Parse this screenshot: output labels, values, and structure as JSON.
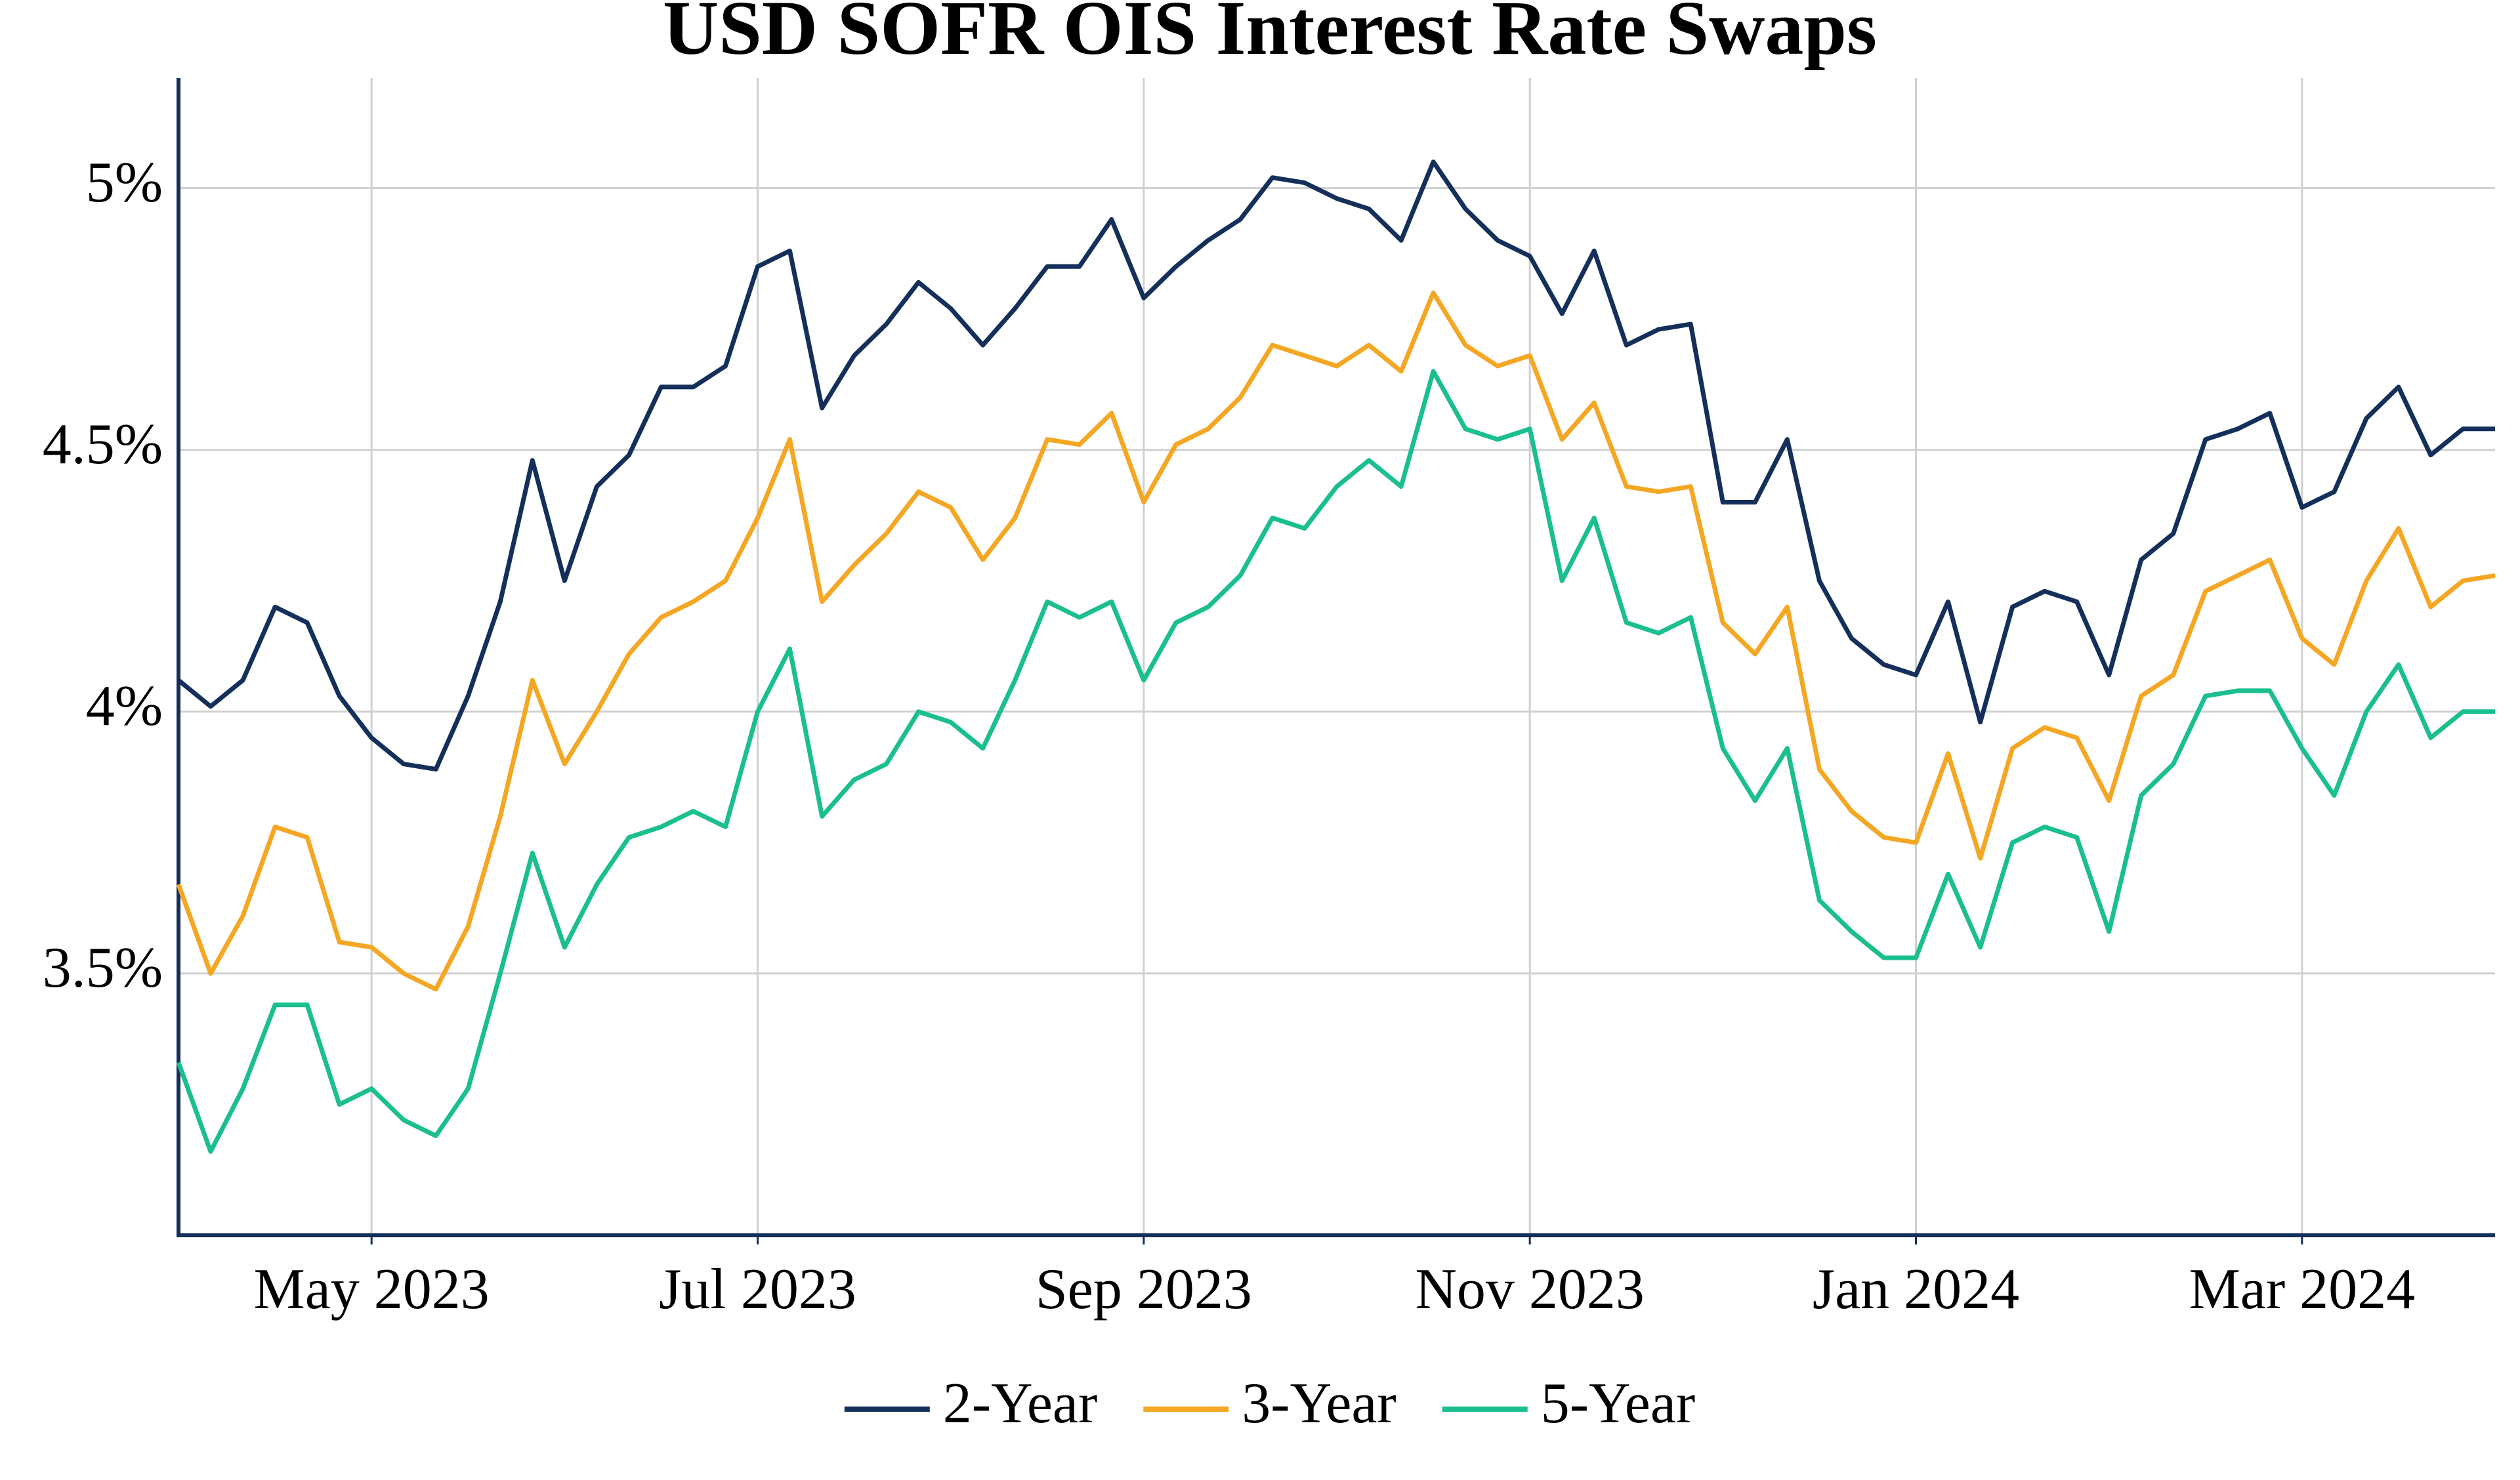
{
  "chart_data": {
    "type": "line",
    "title": "USD SOFR OIS Interest Rate Swaps",
    "categories": [
      null,
      null,
      null,
      null,
      null,
      null,
      "May 2023",
      null,
      null,
      null,
      null,
      null,
      null,
      null,
      null,
      null,
      null,
      null,
      "Jul 2023",
      null,
      null,
      null,
      null,
      null,
      null,
      null,
      null,
      null,
      null,
      null,
      "Sep 2023",
      null,
      null,
      null,
      null,
      null,
      null,
      null,
      null,
      null,
      null,
      null,
      "Nov 2023",
      null,
      null,
      null,
      null,
      null,
      null,
      null,
      null,
      null,
      null,
      null,
      "Jan 2024",
      null,
      null,
      null,
      null,
      null,
      null,
      null,
      null,
      null,
      null,
      null,
      "Mar 2024",
      null,
      null,
      null,
      null,
      null,
      null
    ],
    "series": [
      {
        "name": "2-Year",
        "color": "#14305a",
        "values": [
          4.06,
          4.01,
          4.06,
          4.2,
          4.17,
          4.03,
          3.95,
          3.9,
          3.89,
          4.03,
          4.21,
          4.48,
          4.25,
          4.43,
          4.49,
          4.62,
          4.62,
          4.66,
          4.85,
          4.88,
          4.58,
          4.68,
          4.74,
          4.82,
          4.77,
          4.7,
          4.77,
          4.85,
          4.85,
          4.94,
          4.79,
          4.85,
          4.9,
          4.94,
          5.02,
          5.01,
          4.98,
          4.96,
          4.9,
          5.05,
          4.96,
          4.9,
          4.87,
          4.76,
          4.88,
          4.7,
          4.73,
          4.74,
          4.4,
          4.4,
          4.52,
          4.25,
          4.14,
          4.09,
          4.07,
          4.21,
          3.98,
          4.2,
          4.23,
          4.21,
          4.07,
          4.29,
          4.34,
          4.52,
          4.54,
          4.57,
          4.39,
          4.42,
          4.56,
          4.62,
          4.49,
          4.54,
          4.54
        ]
      },
      {
        "name": "3-Year",
        "color": "#f5a623",
        "values": [
          3.67,
          3.5,
          3.61,
          3.78,
          3.76,
          3.56,
          3.55,
          3.5,
          3.47,
          3.59,
          3.8,
          4.06,
          3.9,
          4.0,
          4.11,
          4.18,
          4.21,
          4.25,
          4.37,
          4.52,
          4.21,
          4.28,
          4.34,
          4.42,
          4.39,
          4.29,
          4.37,
          4.52,
          4.51,
          4.57,
          4.4,
          4.51,
          4.54,
          4.6,
          4.7,
          4.68,
          4.66,
          4.7,
          4.65,
          4.8,
          4.7,
          4.66,
          4.68,
          4.52,
          4.59,
          4.43,
          4.42,
          4.43,
          4.17,
          4.11,
          4.2,
          3.89,
          3.81,
          3.76,
          3.75,
          3.92,
          3.72,
          3.93,
          3.97,
          3.95,
          3.83,
          4.03,
          4.07,
          4.23,
          4.26,
          4.29,
          4.14,
          4.09,
          4.25,
          4.35,
          4.2,
          4.25,
          4.26
        ]
      },
      {
        "name": "5-Year",
        "color": "#1bbf8f",
        "values": [
          3.33,
          3.16,
          3.28,
          3.44,
          3.44,
          3.25,
          3.28,
          3.22,
          3.19,
          3.28,
          3.5,
          3.73,
          3.55,
          3.67,
          3.76,
          3.78,
          3.81,
          3.78,
          4.0,
          4.12,
          3.8,
          3.87,
          3.9,
          4.0,
          3.98,
          3.93,
          4.06,
          4.21,
          4.18,
          4.21,
          4.06,
          4.17,
          4.2,
          4.26,
          4.37,
          4.35,
          4.43,
          4.48,
          4.43,
          4.65,
          4.54,
          4.52,
          4.54,
          4.25,
          4.37,
          4.17,
          4.15,
          4.18,
          3.93,
          3.83,
          3.93,
          3.64,
          3.58,
          3.53,
          3.53,
          3.69,
          3.55,
          3.75,
          3.78,
          3.76,
          3.58,
          3.84,
          3.9,
          4.03,
          4.04,
          4.04,
          3.93,
          3.84,
          4.0,
          4.09,
          3.95,
          4.0,
          4.0
        ]
      }
    ],
    "ylim": [
      3,
      5.21
    ],
    "yticks": [
      {
        "value": 3.5,
        "label": "3.5%"
      },
      {
        "value": 4,
        "label": "4%"
      },
      {
        "value": 4.5,
        "label": "4.5%"
      },
      {
        "value": 5,
        "label": "5%"
      }
    ],
    "grid": true,
    "legend": "bottom"
  }
}
